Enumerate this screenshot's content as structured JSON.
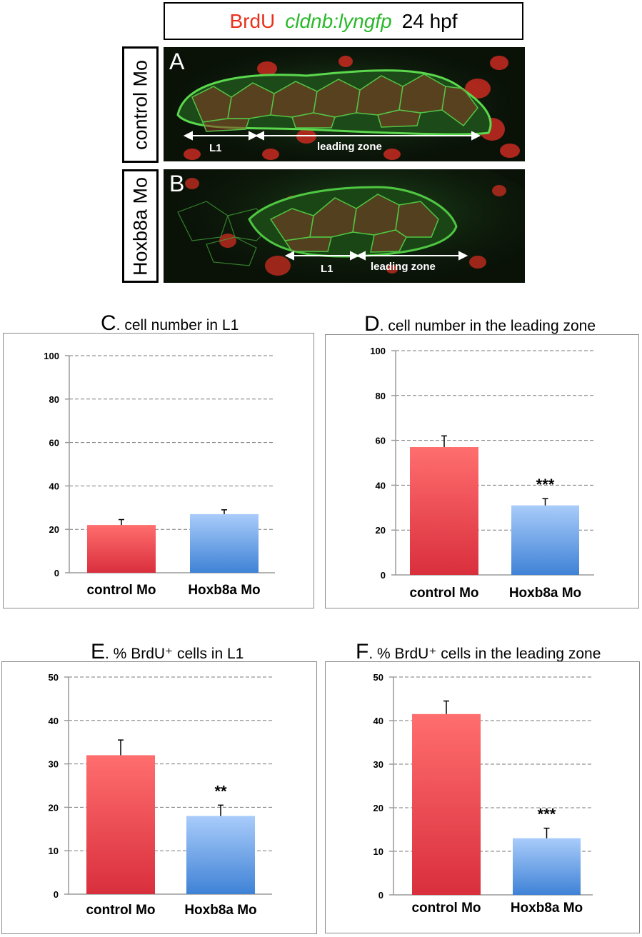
{
  "legend": {
    "brdu": "BrdU",
    "gfp": "cldnb:lyngfp",
    "stage": "24 hpf"
  },
  "micrographs": [
    {
      "letter": "A",
      "row_label": "control Mo",
      "l1_label": "L1",
      "lead_label": "leading zone"
    },
    {
      "letter": "B",
      "row_label": "Hoxb8a Mo",
      "l1_label": "L1",
      "lead_label": "leading zone"
    }
  ],
  "colors": {
    "control_top": "#ff6e6e",
    "control_bottom": "#d92f3d",
    "hoxb8a_top": "#a9ccfa",
    "hoxb8a_bottom": "#3f82d6",
    "grid": "#7a7a7a",
    "axis": "#9a9a9a",
    "frame": "#8a8a8a"
  },
  "chart_data": [
    {
      "id": "C",
      "letter": "C",
      "title": ". cell number in L1",
      "type": "bar",
      "categories": [
        "control Mo",
        "Hoxb8a Mo"
      ],
      "values": [
        22,
        27
      ],
      "errors": [
        2.5,
        2
      ],
      "significance": [
        "",
        ""
      ],
      "ylim": [
        0,
        100
      ],
      "ticks": [
        0,
        20,
        40,
        60,
        80,
        100
      ],
      "grid": true,
      "xlabel": "",
      "ylabel": ""
    },
    {
      "id": "D",
      "letter": "D",
      "title": ". cell number in the leading zone",
      "type": "bar",
      "categories": [
        "control Mo",
        "Hoxb8a Mo"
      ],
      "values": [
        57,
        31
      ],
      "errors": [
        5,
        3
      ],
      "significance": [
        "",
        "***"
      ],
      "ylim": [
        0,
        100
      ],
      "ticks": [
        0,
        20,
        40,
        60,
        80,
        100
      ],
      "grid": true,
      "xlabel": "",
      "ylabel": ""
    },
    {
      "id": "E",
      "letter": "E",
      "title": ". % BrdU⁺ cells in L1",
      "type": "bar",
      "categories": [
        "control Mo",
        "Hoxb8a Mo"
      ],
      "values": [
        32,
        18
      ],
      "errors": [
        3.5,
        2.5
      ],
      "significance": [
        "",
        "**"
      ],
      "ylim": [
        0,
        50
      ],
      "ticks": [
        0,
        10,
        20,
        30,
        40,
        50
      ],
      "grid": true,
      "xlabel": "",
      "ylabel": ""
    },
    {
      "id": "F",
      "letter": "F",
      "title": ". % BrdU⁺ cells in the leading zone",
      "type": "bar",
      "categories": [
        "control Mo",
        "Hoxb8a Mo"
      ],
      "values": [
        41.5,
        13
      ],
      "errors": [
        3,
        2.3
      ],
      "significance": [
        "",
        "***"
      ],
      "ylim": [
        0,
        50
      ],
      "ticks": [
        0,
        10,
        20,
        30,
        40,
        50
      ],
      "grid": true,
      "xlabel": "",
      "ylabel": ""
    }
  ]
}
